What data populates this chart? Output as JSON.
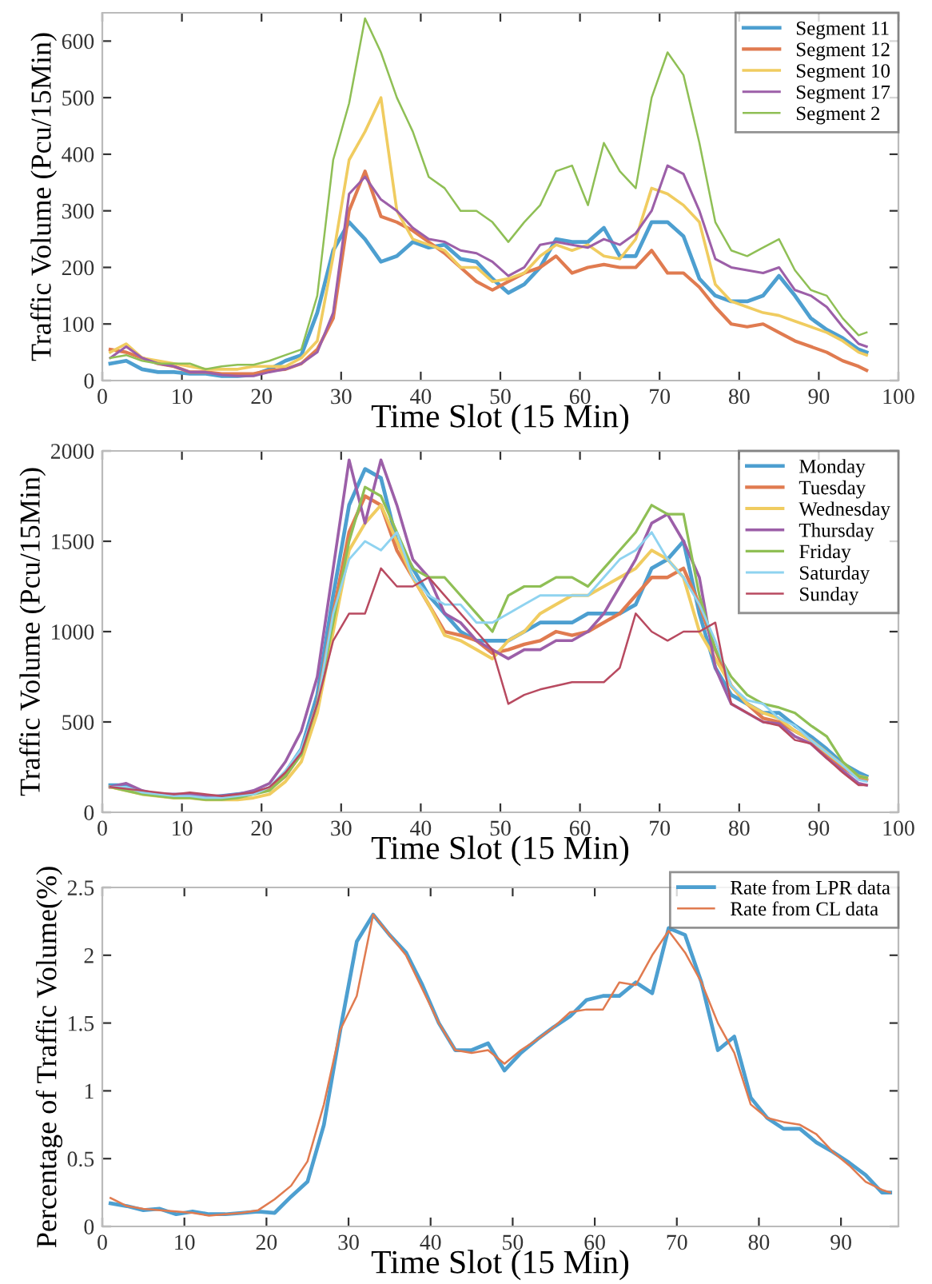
{
  "chart_data": [
    {
      "type": "line",
      "xlabel": "Time Slot (15 Min)",
      "ylabel": "Traffic Volume (Pcu/15Min)",
      "xlim": [
        0,
        100
      ],
      "ylim": [
        0,
        650
      ],
      "xticks": [
        0,
        10,
        20,
        30,
        40,
        50,
        60,
        70,
        80,
        90,
        100
      ],
      "yticks": [
        0,
        100,
        200,
        300,
        400,
        500,
        600
      ],
      "legend": "top right",
      "grid": false,
      "x": [
        1,
        3,
        5,
        7,
        9,
        11,
        13,
        15,
        17,
        19,
        21,
        23,
        25,
        27,
        29,
        31,
        33,
        35,
        37,
        39,
        41,
        43,
        45,
        47,
        49,
        51,
        53,
        55,
        57,
        59,
        61,
        63,
        65,
        67,
        69,
        71,
        73,
        75,
        77,
        79,
        81,
        83,
        85,
        87,
        89,
        91,
        93,
        95,
        96
      ],
      "series": [
        {
          "name": "Segment 11",
          "color": "#4d9fd0",
          "values": [
            30,
            35,
            20,
            15,
            15,
            12,
            12,
            8,
            8,
            10,
            20,
            35,
            45,
            120,
            230,
            280,
            250,
            210,
            220,
            245,
            235,
            240,
            215,
            210,
            180,
            155,
            170,
            200,
            250,
            245,
            245,
            270,
            220,
            220,
            280,
            280,
            255,
            180,
            150,
            140,
            140,
            150,
            185,
            150,
            110,
            90,
            75,
            55,
            50
          ]
        },
        {
          "name": "Segment 12",
          "color": "#e07b50",
          "values": [
            55,
            50,
            40,
            30,
            25,
            15,
            15,
            12,
            12,
            12,
            18,
            20,
            30,
            55,
            110,
            300,
            370,
            290,
            280,
            265,
            245,
            225,
            200,
            175,
            160,
            175,
            190,
            200,
            220,
            190,
            200,
            205,
            200,
            200,
            230,
            190,
            190,
            165,
            130,
            100,
            95,
            100,
            85,
            70,
            60,
            50,
            35,
            25,
            18
          ]
        },
        {
          "name": "Segment 10",
          "color": "#f0cc60",
          "values": [
            50,
            65,
            40,
            35,
            30,
            25,
            20,
            20,
            20,
            25,
            25,
            25,
            40,
            70,
            220,
            390,
            440,
            500,
            300,
            250,
            240,
            230,
            200,
            200,
            175,
            180,
            190,
            220,
            240,
            230,
            240,
            220,
            215,
            250,
            340,
            330,
            310,
            280,
            170,
            140,
            130,
            120,
            115,
            105,
            95,
            85,
            70,
            50,
            45
          ]
        },
        {
          "name": "Segment 17",
          "color": "#9c5fa8",
          "values": [
            40,
            60,
            40,
            30,
            25,
            15,
            15,
            10,
            8,
            8,
            15,
            20,
            30,
            50,
            120,
            330,
            360,
            320,
            300,
            270,
            250,
            245,
            230,
            225,
            210,
            185,
            200,
            240,
            245,
            240,
            235,
            250,
            240,
            260,
            300,
            380,
            365,
            300,
            215,
            200,
            195,
            190,
            200,
            160,
            150,
            130,
            95,
            65,
            60
          ]
        },
        {
          "name": "Segment 2",
          "color": "#8fbf55",
          "values": [
            40,
            45,
            35,
            30,
            30,
            30,
            20,
            25,
            28,
            28,
            35,
            45,
            55,
            150,
            390,
            490,
            640,
            580,
            500,
            440,
            360,
            340,
            300,
            300,
            280,
            245,
            280,
            310,
            370,
            380,
            310,
            420,
            370,
            340,
            500,
            580,
            540,
            420,
            280,
            230,
            220,
            235,
            250,
            195,
            160,
            150,
            110,
            80,
            85
          ]
        }
      ]
    },
    {
      "type": "line",
      "xlabel": "Time Slot (15 Min)",
      "ylabel": "Traffic Volume (Pcu/15Min)",
      "xlim": [
        0,
        100
      ],
      "ylim": [
        0,
        2000
      ],
      "xticks": [
        0,
        10,
        20,
        30,
        40,
        50,
        60,
        70,
        80,
        90,
        100
      ],
      "yticks": [
        0,
        500,
        1000,
        1500,
        2000
      ],
      "legend": "top right",
      "grid": false,
      "x": [
        1,
        3,
        5,
        7,
        9,
        11,
        13,
        15,
        17,
        19,
        21,
        23,
        25,
        27,
        29,
        31,
        33,
        35,
        37,
        39,
        41,
        43,
        45,
        47,
        49,
        51,
        53,
        55,
        57,
        59,
        61,
        63,
        65,
        67,
        69,
        71,
        73,
        75,
        77,
        79,
        81,
        83,
        85,
        87,
        89,
        91,
        93,
        95,
        96
      ],
      "series": [
        {
          "name": "Monday",
          "color": "#4d9fd0",
          "values": [
            150,
            150,
            110,
            100,
            90,
            90,
            80,
            90,
            100,
            110,
            130,
            220,
            350,
            650,
            1200,
            1700,
            1900,
            1850,
            1500,
            1350,
            1200,
            1100,
            1000,
            950,
            950,
            950,
            1000,
            1050,
            1050,
            1050,
            1100,
            1100,
            1100,
            1150,
            1350,
            1400,
            1500,
            1100,
            800,
            650,
            600,
            550,
            550,
            480,
            420,
            350,
            270,
            220,
            200
          ]
        },
        {
          "name": "Tuesday",
          "color": "#e07b50",
          "values": [
            140,
            130,
            110,
            100,
            90,
            90,
            80,
            80,
            90,
            110,
            130,
            200,
            330,
            600,
            1100,
            1550,
            1750,
            1700,
            1450,
            1300,
            1150,
            1000,
            980,
            950,
            880,
            900,
            930,
            950,
            1000,
            980,
            1000,
            1050,
            1100,
            1200,
            1300,
            1300,
            1350,
            1150,
            900,
            700,
            600,
            520,
            500,
            450,
            400,
            320,
            250,
            190,
            180
          ]
        },
        {
          "name": "Wednesday",
          "color": "#f0cc60",
          "values": [
            140,
            120,
            100,
            90,
            80,
            80,
            70,
            70,
            70,
            80,
            100,
            170,
            280,
            550,
            1000,
            1450,
            1600,
            1700,
            1500,
            1300,
            1150,
            980,
            950,
            900,
            850,
            950,
            1000,
            1100,
            1150,
            1200,
            1200,
            1250,
            1300,
            1350,
            1450,
            1400,
            1300,
            1000,
            850,
            700,
            600,
            550,
            520,
            450,
            400,
            330,
            260,
            200,
            190
          ]
        },
        {
          "name": "Thursday",
          "color": "#9c5fa8",
          "values": [
            140,
            160,
            120,
            100,
            100,
            100,
            90,
            90,
            100,
            120,
            160,
            280,
            450,
            750,
            1350,
            1950,
            1600,
            1950,
            1700,
            1400,
            1300,
            1100,
            1050,
            950,
            900,
            850,
            900,
            900,
            950,
            950,
            1000,
            1100,
            1250,
            1400,
            1600,
            1650,
            1500,
            1300,
            800,
            600,
            550,
            500,
            490,
            420,
            380,
            300,
            230,
            160,
            150
          ]
        },
        {
          "name": "Friday",
          "color": "#8fbf55",
          "values": [
            140,
            120,
            100,
            90,
            80,
            80,
            70,
            70,
            80,
            100,
            120,
            200,
            320,
            600,
            1050,
            1500,
            1800,
            1750,
            1550,
            1350,
            1300,
            1300,
            1200,
            1100,
            1000,
            1200,
            1250,
            1250,
            1300,
            1300,
            1250,
            1350,
            1450,
            1550,
            1700,
            1650,
            1650,
            1200,
            900,
            750,
            650,
            600,
            580,
            550,
            480,
            420,
            280,
            200,
            190
          ]
        },
        {
          "name": "Saturday",
          "color": "#8fd3f0",
          "values": [
            140,
            140,
            110,
            100,
            90,
            90,
            80,
            80,
            90,
            100,
            140,
            230,
            350,
            600,
            1100,
            1400,
            1500,
            1450,
            1550,
            1300,
            1200,
            1150,
            1150,
            1050,
            1050,
            1100,
            1150,
            1200,
            1200,
            1200,
            1200,
            1300,
            1400,
            1450,
            1550,
            1400,
            1300,
            1150,
            950,
            700,
            620,
            600,
            520,
            480,
            400,
            330,
            260,
            180,
            170
          ]
        },
        {
          "name": "Sunday",
          "color": "#b84a60",
          "values": [
            140,
            130,
            120,
            110,
            100,
            110,
            100,
            90,
            100,
            110,
            140,
            220,
            330,
            600,
            950,
            1100,
            1100,
            1350,
            1250,
            1250,
            1300,
            1200,
            1100,
            1000,
            900,
            600,
            650,
            680,
            700,
            720,
            720,
            720,
            800,
            1100,
            1000,
            950,
            1000,
            1000,
            1050,
            600,
            550,
            500,
            480,
            400,
            380,
            300,
            220,
            150,
            150
          ]
        }
      ]
    },
    {
      "type": "line",
      "xlabel": "Time Slot (15 Min)",
      "ylabel": "Percentage of Traffic Volume(%)",
      "xlim": [
        0,
        97
      ],
      "ylim": [
        0,
        2.5
      ],
      "xticks": [
        0,
        10,
        20,
        30,
        40,
        50,
        60,
        70,
        80,
        90
      ],
      "yticks": [
        0,
        0.5,
        1,
        1.5,
        2,
        2.5
      ],
      "legend": "top right",
      "grid": false,
      "x": [
        1,
        3,
        5,
        7,
        9,
        11,
        13,
        15,
        17,
        19,
        21,
        23,
        25,
        27,
        29,
        31,
        33,
        35,
        37,
        39,
        41,
        43,
        45,
        47,
        49,
        51,
        53,
        55,
        57,
        59,
        61,
        63,
        65,
        67,
        69,
        71,
        73,
        75,
        77,
        79,
        81,
        83,
        85,
        87,
        89,
        91,
        93,
        95,
        96
      ],
      "series": [
        {
          "name": "Rate from LPR data",
          "color": "#4d9fd0",
          "values": [
            0.17,
            0.15,
            0.12,
            0.13,
            0.09,
            0.11,
            0.09,
            0.09,
            0.1,
            0.11,
            0.1,
            0.22,
            0.33,
            0.75,
            1.45,
            2.1,
            2.3,
            2.15,
            2.02,
            1.78,
            1.5,
            1.3,
            1.3,
            1.35,
            1.15,
            1.28,
            1.38,
            1.47,
            1.55,
            1.67,
            1.7,
            1.7,
            1.8,
            1.72,
            2.2,
            2.15,
            1.8,
            1.3,
            1.4,
            0.95,
            0.8,
            0.72,
            0.72,
            0.62,
            0.55,
            0.47,
            0.38,
            0.25,
            0.25
          ]
        },
        {
          "name": "Rate from CL data",
          "color": "#e07b50",
          "values": [
            0.21,
            0.15,
            0.13,
            0.12,
            0.11,
            0.1,
            0.08,
            0.09,
            0.1,
            0.12,
            0.2,
            0.3,
            0.48,
            0.9,
            1.45,
            1.7,
            2.3,
            2.15,
            2.0,
            1.75,
            1.5,
            1.3,
            1.28,
            1.3,
            1.2,
            1.3,
            1.38,
            1.47,
            1.58,
            1.6,
            1.6,
            1.8,
            1.78,
            2.0,
            2.18,
            2.02,
            1.8,
            1.5,
            1.28,
            0.9,
            0.8,
            0.77,
            0.75,
            0.68,
            0.55,
            0.45,
            0.33,
            0.27,
            0.25
          ]
        }
      ]
    }
  ]
}
